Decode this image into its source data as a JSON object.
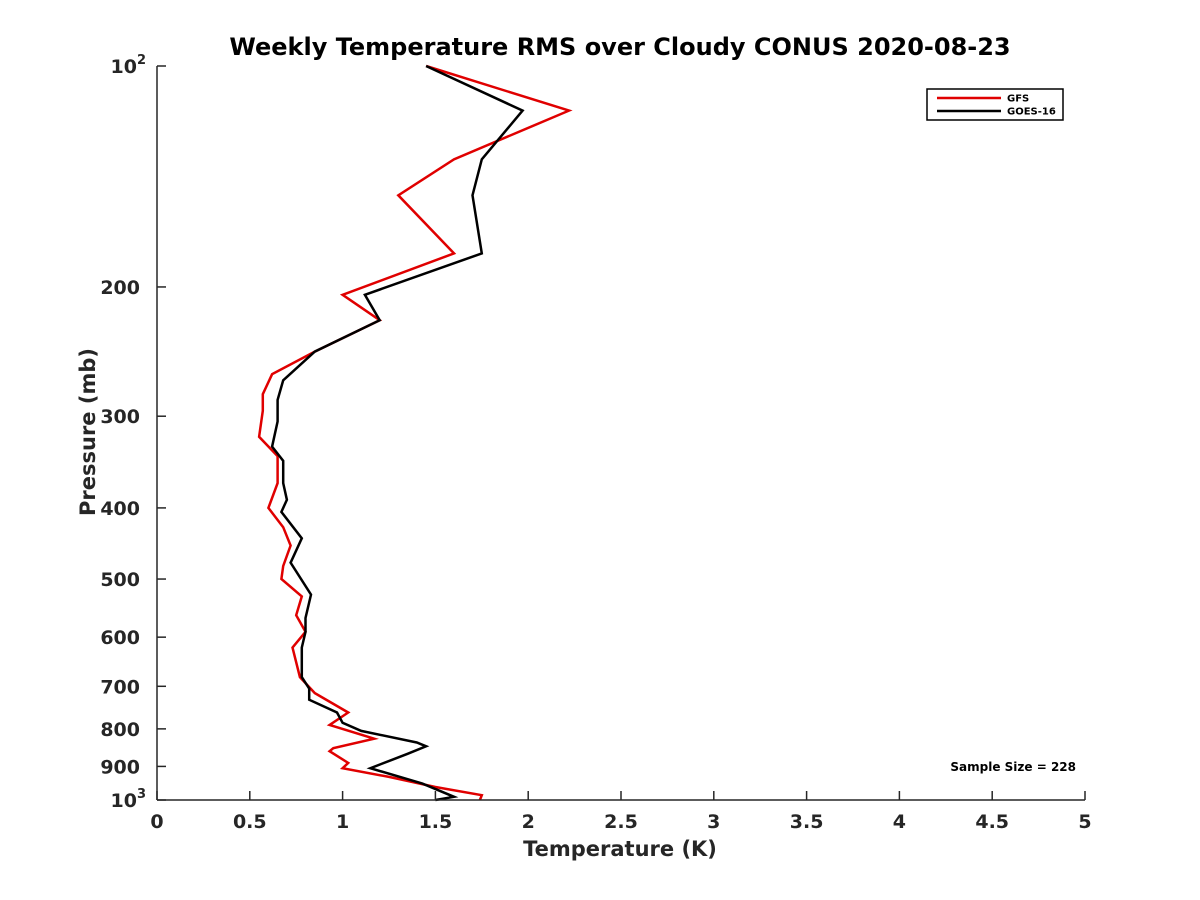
{
  "chart_data": {
    "type": "line",
    "title": "Weekly Temperature RMS over Cloudy CONUS 2020-08-23",
    "xlabel": "Temperature (K)",
    "ylabel": "Pressure (mb)",
    "xlim": [
      0,
      5
    ],
    "ylim": [
      100,
      1000
    ],
    "y_scale": "log",
    "y_reversed": true,
    "x_ticks": [
      "0",
      "0.5",
      "1",
      "1.5",
      "2",
      "2.5",
      "3",
      "3.5",
      "4",
      "4.5",
      "5"
    ],
    "y_ticks": [
      {
        "value": 100,
        "base": "10",
        "exp": "2"
      },
      {
        "value": 200,
        "label": "200"
      },
      {
        "value": 300,
        "label": "300"
      },
      {
        "value": 400,
        "label": "400"
      },
      {
        "value": 500,
        "label": "500"
      },
      {
        "value": 600,
        "label": "600"
      },
      {
        "value": 700,
        "label": "700"
      },
      {
        "value": 800,
        "label": "800"
      },
      {
        "value": 900,
        "label": "900"
      },
      {
        "value": 1000,
        "base": "10",
        "exp": "3"
      }
    ],
    "grid": false,
    "legend_position": "top-right",
    "annotation": "Sample Size = 228",
    "series": [
      {
        "name": "GFS",
        "color": "#e00000",
        "points": [
          [
            1.45,
            100
          ],
          [
            2.22,
            115
          ],
          [
            1.6,
            134
          ],
          [
            1.3,
            150
          ],
          [
            1.6,
            180
          ],
          [
            1.0,
            205
          ],
          [
            1.2,
            222
          ],
          [
            0.85,
            245
          ],
          [
            0.62,
            263
          ],
          [
            0.57,
            280
          ],
          [
            0.57,
            295
          ],
          [
            0.55,
            320
          ],
          [
            0.65,
            340
          ],
          [
            0.65,
            370
          ],
          [
            0.6,
            400
          ],
          [
            0.68,
            425
          ],
          [
            0.72,
            450
          ],
          [
            0.68,
            480
          ],
          [
            0.67,
            500
          ],
          [
            0.78,
            528
          ],
          [
            0.75,
            560
          ],
          [
            0.8,
            590
          ],
          [
            0.73,
            620
          ],
          [
            0.77,
            680
          ],
          [
            0.85,
            715
          ],
          [
            1.03,
            760
          ],
          [
            0.93,
            790
          ],
          [
            1.17,
            825
          ],
          [
            0.95,
            850
          ],
          [
            0.93,
            858
          ],
          [
            1.03,
            890
          ],
          [
            1.0,
            905
          ],
          [
            1.25,
            930
          ],
          [
            1.5,
            960
          ],
          [
            1.75,
            985
          ],
          [
            1.74,
            1000
          ]
        ]
      },
      {
        "name": "GOES-16",
        "color": "#000000",
        "points": [
          [
            1.45,
            100
          ],
          [
            1.97,
            115
          ],
          [
            1.75,
            134
          ],
          [
            1.7,
            150
          ],
          [
            1.75,
            180
          ],
          [
            1.12,
            205
          ],
          [
            1.2,
            222
          ],
          [
            0.85,
            245
          ],
          [
            0.68,
            268
          ],
          [
            0.65,
            285
          ],
          [
            0.65,
            305
          ],
          [
            0.62,
            330
          ],
          [
            0.68,
            345
          ],
          [
            0.68,
            370
          ],
          [
            0.7,
            390
          ],
          [
            0.67,
            405
          ],
          [
            0.78,
            440
          ],
          [
            0.72,
            475
          ],
          [
            0.83,
            525
          ],
          [
            0.8,
            565
          ],
          [
            0.8,
            590
          ],
          [
            0.78,
            620
          ],
          [
            0.78,
            680
          ],
          [
            0.82,
            705
          ],
          [
            0.82,
            730
          ],
          [
            0.97,
            760
          ],
          [
            1.0,
            785
          ],
          [
            1.1,
            805
          ],
          [
            1.4,
            835
          ],
          [
            1.45,
            845
          ],
          [
            1.35,
            865
          ],
          [
            1.15,
            905
          ],
          [
            1.43,
            950
          ],
          [
            1.6,
            990
          ],
          [
            1.5,
            1000
          ]
        ]
      }
    ]
  }
}
